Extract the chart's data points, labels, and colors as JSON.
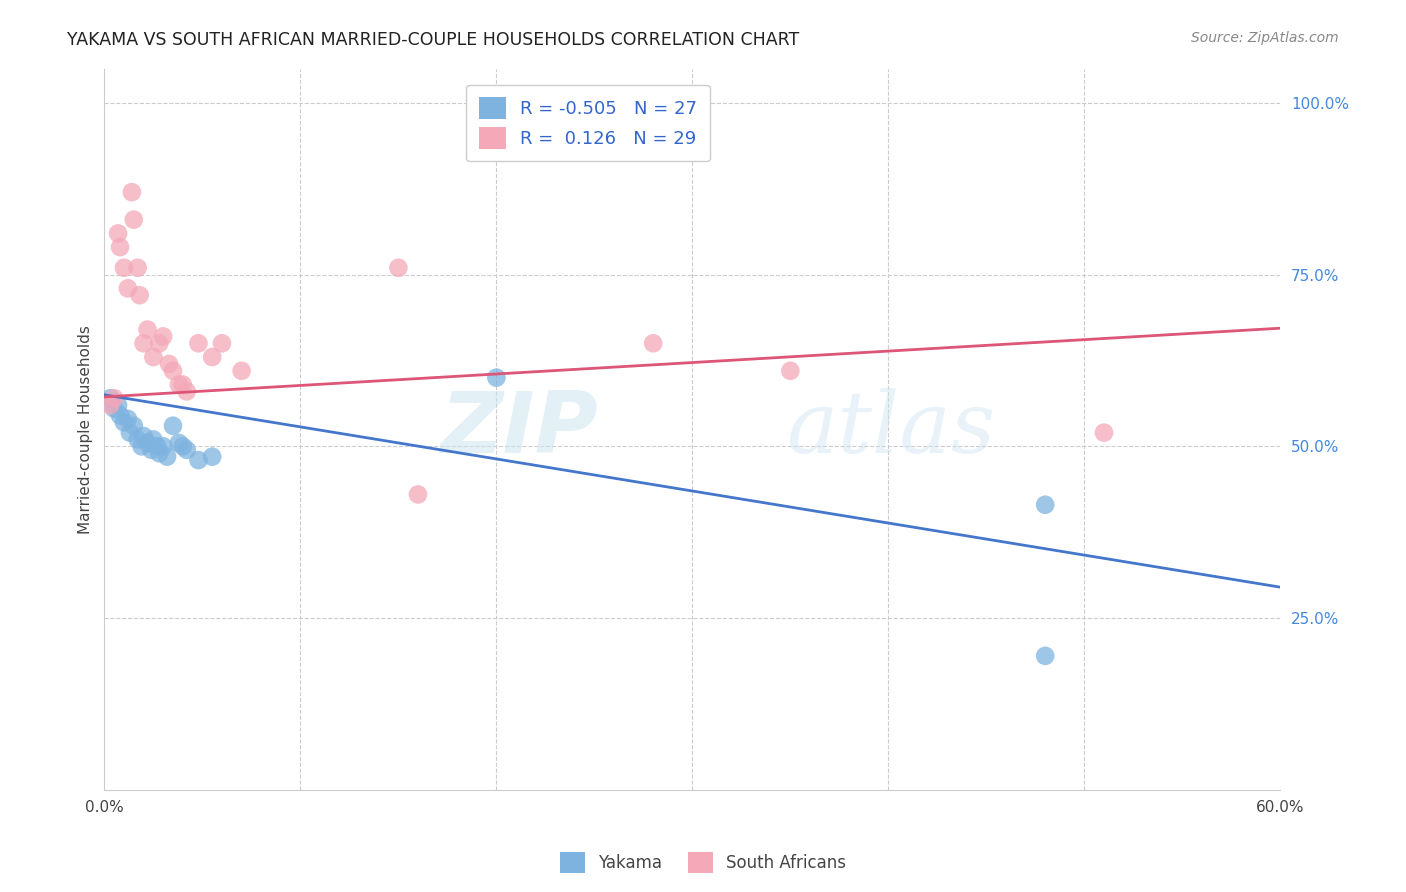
{
  "title": "YAKAMA VS SOUTH AFRICAN MARRIED-COUPLE HOUSEHOLDS CORRELATION CHART",
  "source": "Source: ZipAtlas.com",
  "ylabel": "Married-couple Households",
  "xlim": [
    0.0,
    0.6
  ],
  "ylim": [
    0.0,
    1.05
  ],
  "grid_color": "#cccccc",
  "blue_color": "#7eb3e0",
  "pink_color": "#f4a8b8",
  "blue_line_color": "#4477cc",
  "pink_line_color": "#dd5577",
  "legend_R_blue": "-0.505",
  "legend_N_blue": "27",
  "legend_R_pink": " 0.126",
  "legend_N_pink": "29",
  "legend_label_blue": "Yakama",
  "legend_label_pink": "South Africans",
  "watermark_zip": "ZIP",
  "watermark_atlas": "atlas",
  "blue_scatter_x": [
    0.003,
    0.005,
    0.007,
    0.008,
    0.01,
    0.012,
    0.013,
    0.015,
    0.017,
    0.019,
    0.02,
    0.022,
    0.024,
    0.025,
    0.027,
    0.028,
    0.03,
    0.032,
    0.035,
    0.038,
    0.04,
    0.042,
    0.048,
    0.055,
    0.2,
    0.48,
    0.48
  ],
  "blue_scatter_y": [
    0.57,
    0.555,
    0.56,
    0.545,
    0.535,
    0.54,
    0.52,
    0.53,
    0.51,
    0.5,
    0.515,
    0.505,
    0.495,
    0.51,
    0.5,
    0.49,
    0.5,
    0.485,
    0.53,
    0.505,
    0.5,
    0.495,
    0.48,
    0.485,
    0.6,
    0.415,
    0.195
  ],
  "pink_scatter_x": [
    0.003,
    0.005,
    0.007,
    0.008,
    0.01,
    0.012,
    0.014,
    0.015,
    0.017,
    0.018,
    0.02,
    0.022,
    0.025,
    0.028,
    0.03,
    0.033,
    0.035,
    0.038,
    0.04,
    0.042,
    0.048,
    0.055,
    0.06,
    0.07,
    0.15,
    0.16,
    0.28,
    0.35,
    0.51
  ],
  "pink_scatter_y": [
    0.56,
    0.57,
    0.81,
    0.79,
    0.76,
    0.73,
    0.87,
    0.83,
    0.76,
    0.72,
    0.65,
    0.67,
    0.63,
    0.65,
    0.66,
    0.62,
    0.61,
    0.59,
    0.59,
    0.58,
    0.65,
    0.63,
    0.65,
    0.61,
    0.76,
    0.43,
    0.65,
    0.61,
    0.52
  ]
}
